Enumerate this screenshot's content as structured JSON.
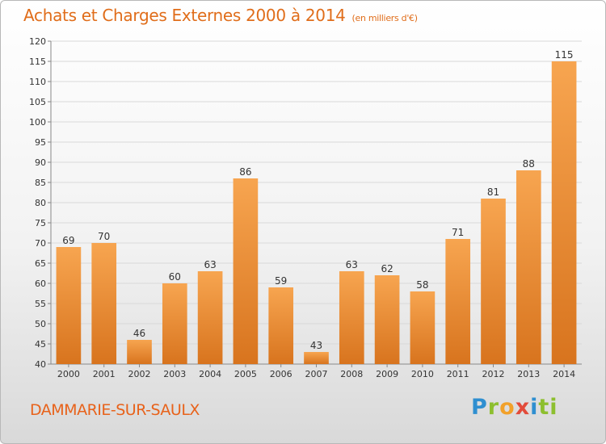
{
  "header": {
    "title": "Achats et Charges Externes 2000 à 2014",
    "unit": "(en milliers d'€)"
  },
  "footer": {
    "commune": "DAMMARIE-SUR-SAULX",
    "logo_parts": [
      "P",
      "r",
      "o",
      "x",
      "i",
      "ti"
    ]
  },
  "colors": {
    "bar_light": "#f7a550",
    "bar_dark": "#d8741e",
    "title": "#e06d1a",
    "grid": "#d9d9d9",
    "axis_text": "#333333"
  },
  "chart_data": {
    "type": "bar",
    "categories": [
      "2000",
      "2001",
      "2002",
      "2003",
      "2004",
      "2005",
      "2006",
      "2007",
      "2008",
      "2009",
      "2010",
      "2011",
      "2012",
      "2013",
      "2014"
    ],
    "values": [
      69,
      70,
      46,
      60,
      63,
      86,
      59,
      43,
      63,
      62,
      58,
      71,
      81,
      88,
      115
    ],
    "ylim": [
      40,
      120
    ],
    "yticks": [
      40,
      45,
      50,
      55,
      60,
      65,
      70,
      75,
      80,
      85,
      90,
      95,
      100,
      105,
      110,
      115,
      120
    ],
    "grid": true,
    "data_labels": true
  }
}
